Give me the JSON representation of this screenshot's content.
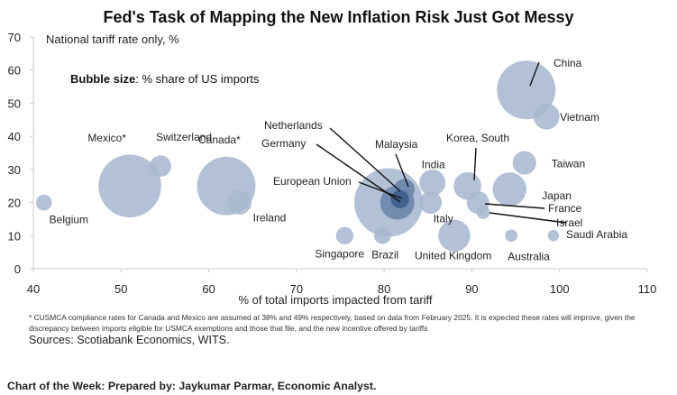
{
  "chart_data": {
    "type": "scatter",
    "title": "Fed's Task of Mapping the New Inflation Risk Just Got Messy",
    "ylabel": "National tariff rate only, %",
    "xlabel": "% of total imports impacted from tariff",
    "bubble_note_bold": "Bubble size",
    "bubble_note": ": % share of US imports",
    "xlim": [
      40,
      110
    ],
    "ylim": [
      0,
      70
    ],
    "xticks": [
      40,
      50,
      60,
      70,
      80,
      90,
      100,
      110
    ],
    "yticks": [
      0,
      10,
      20,
      30,
      40,
      50,
      60,
      70
    ],
    "points": [
      {
        "label": "Belgium",
        "x": 41.2,
        "y": 20,
        "size": 1.0
      },
      {
        "label": "Mexico*",
        "x": 51,
        "y": 25,
        "size": 15.5
      },
      {
        "label": "Switzerland",
        "x": 54.5,
        "y": 31,
        "size": 1.8
      },
      {
        "label": "Canada*",
        "x": 62,
        "y": 25,
        "size": 13.5
      },
      {
        "label": "Ireland",
        "x": 63.5,
        "y": 20,
        "size": 2.3
      },
      {
        "label": "Singapore",
        "x": 75.5,
        "y": 10,
        "size": 1.2
      },
      {
        "label": "Brazil",
        "x": 79.8,
        "y": 10,
        "size": 1.1
      },
      {
        "label": "European Union",
        "x": 80.5,
        "y": 20,
        "size": 18.5
      },
      {
        "label": "Germany",
        "x": 81.5,
        "y": 20,
        "size": 4.6
      },
      {
        "label": "Netherlands",
        "x": 81.8,
        "y": 21,
        "size": 1.3
      },
      {
        "label": "Malaysia",
        "x": 82.3,
        "y": 24,
        "size": 1.7
      },
      {
        "label": "Italy",
        "x": 85.3,
        "y": 20,
        "size": 2.0
      },
      {
        "label": "India",
        "x": 85.5,
        "y": 26,
        "size": 2.7
      },
      {
        "label": "United Kingdom",
        "x": 88,
        "y": 10,
        "size": 4.0
      },
      {
        "label": "Korea, South",
        "x": 89.5,
        "y": 25,
        "size": 3.0
      },
      {
        "label": "France",
        "x": 90.7,
        "y": 20,
        "size": 2.0
      },
      {
        "label": "Israel",
        "x": 91.3,
        "y": 17,
        "size": 0.7
      },
      {
        "label": "Japan",
        "x": 94.3,
        "y": 24,
        "size": 4.5
      },
      {
        "label": "Australia",
        "x": 94.5,
        "y": 10,
        "size": 0.6
      },
      {
        "label": "Taiwan",
        "x": 96,
        "y": 32,
        "size": 2.2
      },
      {
        "label": "China",
        "x": 96.2,
        "y": 54,
        "size": 13.5
      },
      {
        "label": "Vietnam",
        "x": 98.5,
        "y": 46,
        "size": 2.7
      },
      {
        "label": "Saudi Arabia",
        "x": 99.3,
        "y": 10,
        "size": 0.5
      }
    ]
  },
  "footnote": "* CUSMCA compliance rates for Canada and Mexico are assumed at 38% and 49% respectively, based on data from February 2025. It is expected these rates will improve, given the discrepancy between imports eligible for USMCA exemptions and those that file, and the new incentive offered by tariffs",
  "sources": "Sources: Scotiabank Economics, WITS.",
  "credit": "Chart of the Week: Prepared by: Jaykumar Parmar, Economic Analyst.",
  "colors": {
    "bubble": "#a7b8cf",
    "bubble_dark": "#6f88ad",
    "bubble_darkest": "#3f5f8c",
    "axis": "#c8c8c8",
    "text": "#222222"
  }
}
